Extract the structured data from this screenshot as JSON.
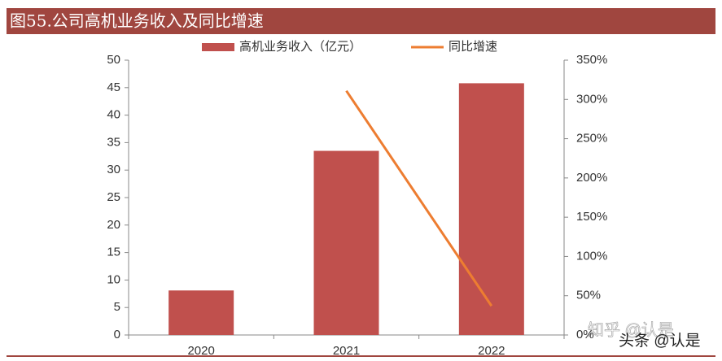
{
  "title": "图55.公司高机业务收入及同比增速",
  "chart_data": {
    "type": "bar-line",
    "categories": [
      "2020",
      "2021",
      "2022"
    ],
    "series": [
      {
        "name": "高机业务收入（亿元）",
        "color": "#c0504d",
        "type": "bar",
        "values": [
          8.1,
          33.5,
          45.8
        ]
      },
      {
        "name": "同比增速",
        "color": "#ed7d31",
        "type": "line",
        "axis": "y2",
        "values": [
          null,
          311,
          37
        ]
      }
    ],
    "ylim": [
      0,
      50
    ],
    "yticks": [
      0,
      5,
      10,
      15,
      20,
      25,
      30,
      35,
      40,
      45,
      50
    ],
    "y2lim": [
      0,
      350
    ],
    "y2ticks": [
      {
        "value": 0,
        "label": "0%"
      },
      {
        "value": 50,
        "label": "50%"
      },
      {
        "value": 100,
        "label": "100%"
      },
      {
        "value": 150,
        "label": "150%"
      },
      {
        "value": 200,
        "label": "200%"
      },
      {
        "value": 250,
        "label": "250%"
      },
      {
        "value": 300,
        "label": "300%"
      },
      {
        "value": 350,
        "label": "350%"
      }
    ],
    "legend": "top"
  },
  "watermarks": [
    "知乎 @认是",
    "头条 @认是"
  ]
}
